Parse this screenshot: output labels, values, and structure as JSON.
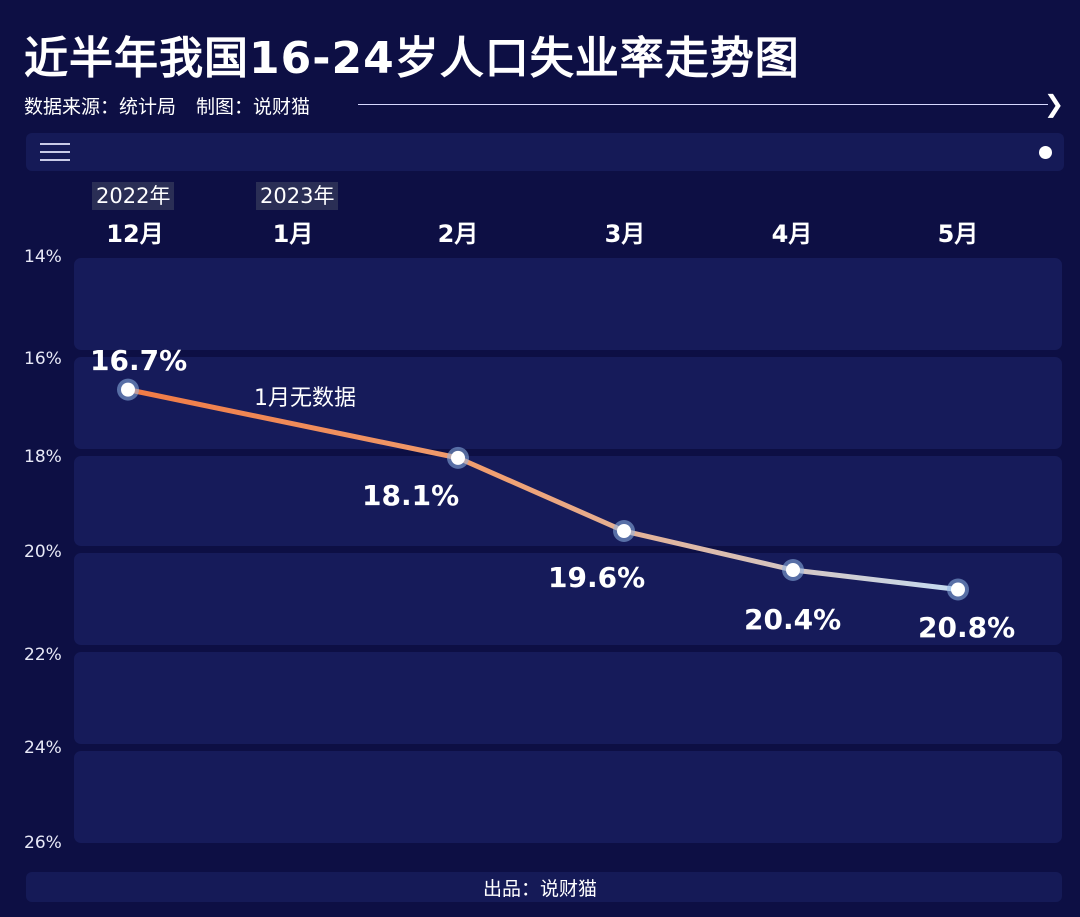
{
  "header": {
    "title": "近半年我国16-24岁人口失业率走势图",
    "source": "数据来源：统计局",
    "credit": "制图：说财猫"
  },
  "footer": {
    "text": "出品：说财猫"
  },
  "chart_data": {
    "type": "line",
    "title": "近半年我国16-24岁人口失业率走势图",
    "year_tags": [
      "2022年",
      "2023年"
    ],
    "categories": [
      "12月",
      "1月",
      "2月",
      "3月",
      "4月",
      "5月"
    ],
    "series": [
      {
        "values": [
          16.7,
          null,
          18.1,
          19.6,
          20.4,
          20.8
        ]
      }
    ],
    "data_labels": [
      "16.7%",
      "",
      "18.1%",
      "19.6%",
      "20.4%",
      "20.8%"
    ],
    "annotation": "1月无数据",
    "y_ticks": [
      "14%",
      "16%",
      "18%",
      "20%",
      "22%",
      "24%",
      "26%"
    ],
    "ylim": [
      14,
      26
    ],
    "y_inverted": true,
    "grid": "horizontal bands",
    "colors": {
      "background": "#0d0f44",
      "band": "#161b5a",
      "line_start": "#f07a45",
      "line_end": "#c5dcf2",
      "point": "#ffffff"
    }
  }
}
